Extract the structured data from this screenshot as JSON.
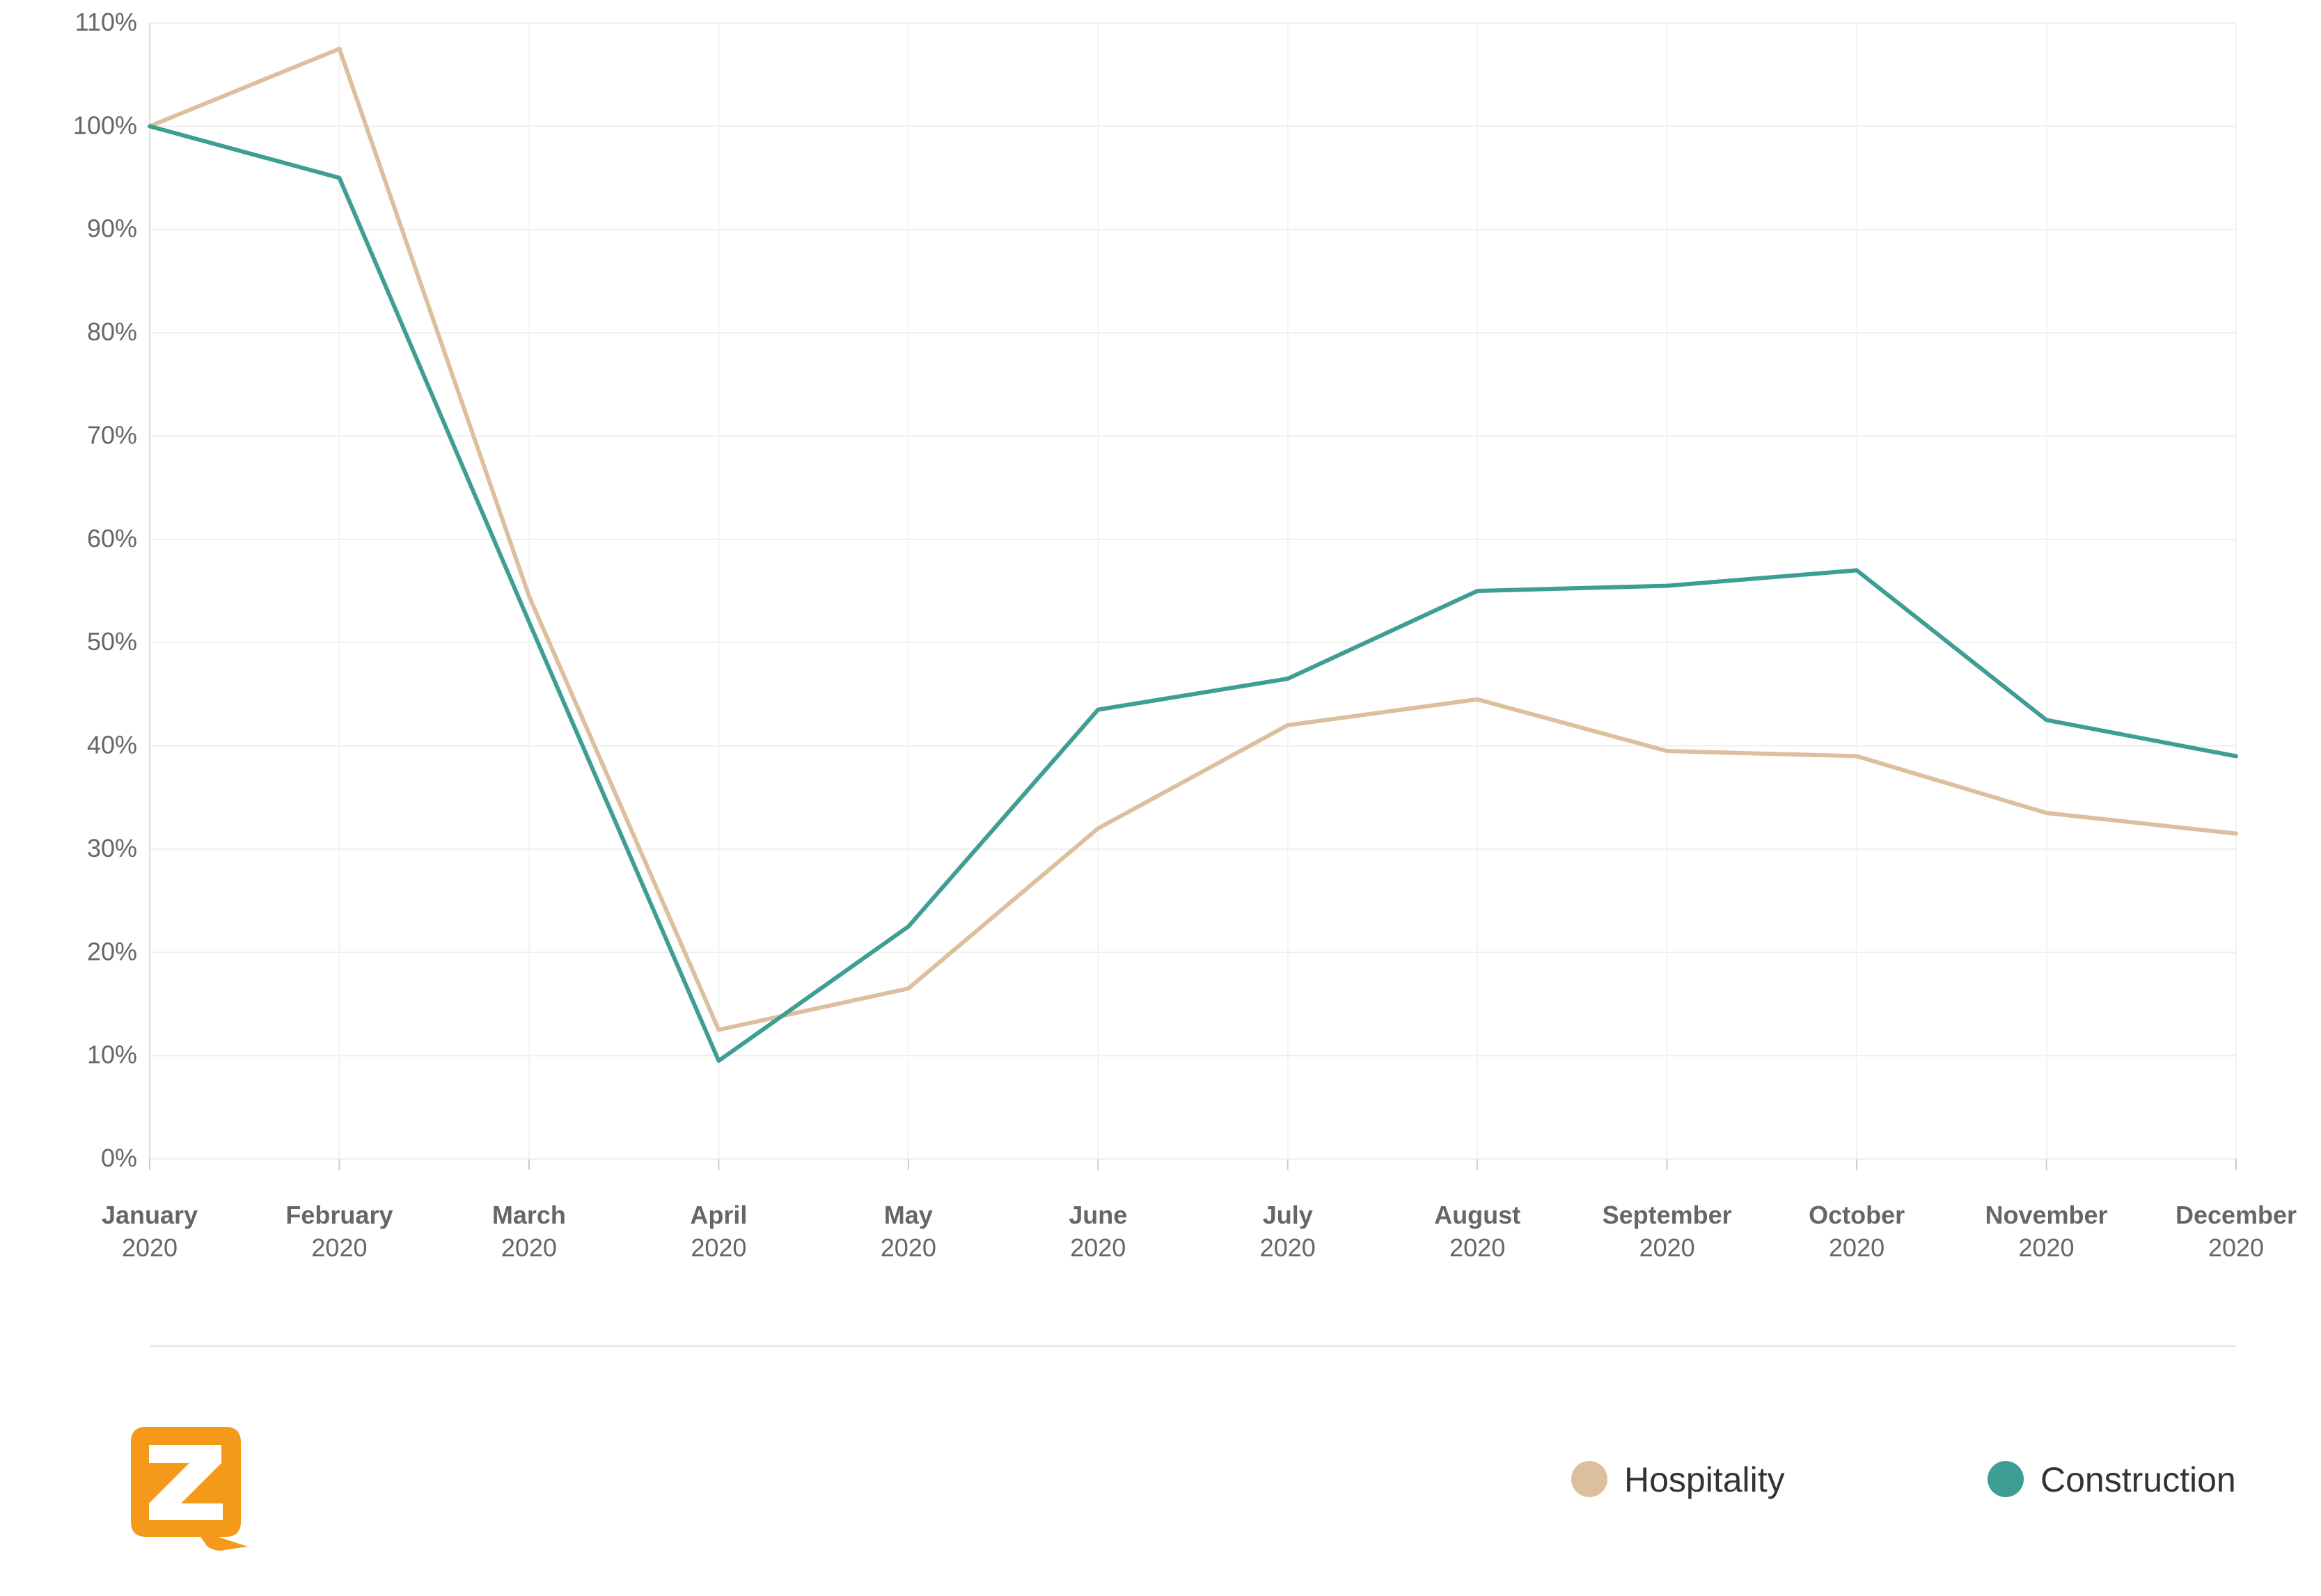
{
  "chart_data": {
    "type": "line",
    "categories": [
      [
        "January",
        "2020"
      ],
      [
        "February",
        "2020"
      ],
      [
        "March",
        "2020"
      ],
      [
        "April",
        "2020"
      ],
      [
        "May",
        "2020"
      ],
      [
        "June",
        "2020"
      ],
      [
        "July",
        "2020"
      ],
      [
        "August",
        "2020"
      ],
      [
        "September",
        "2020"
      ],
      [
        "October",
        "2020"
      ],
      [
        "November",
        "2020"
      ],
      [
        "December",
        "2020"
      ]
    ],
    "y_ticks": [
      "0%",
      "10%",
      "20%",
      "30%",
      "40%",
      "50%",
      "60%",
      "70%",
      "80%",
      "90%",
      "100%",
      "110%"
    ],
    "ylim": [
      0,
      110
    ],
    "grid": true,
    "legend_position": "bottom-right",
    "series": [
      {
        "name": "Hospitality",
        "color": "#dcbf9c",
        "values": [
          100,
          107.5,
          54.5,
          12.5,
          16.5,
          32,
          42,
          44.5,
          39.5,
          39,
          33.5,
          31.5
        ]
      },
      {
        "name": "Construction",
        "color": "#3f9e94",
        "values": [
          100,
          95,
          52,
          9.5,
          22.5,
          43.5,
          46.5,
          55,
          55.5,
          57,
          42.5,
          39
        ]
      }
    ]
  },
  "logo": {
    "name": "zoom-z-logo",
    "color": "#f4991a"
  }
}
